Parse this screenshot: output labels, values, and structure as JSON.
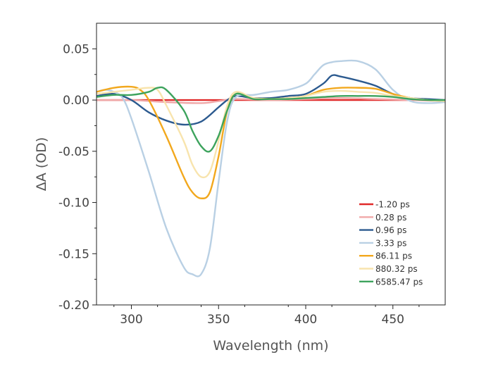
{
  "chart_data": {
    "type": "line",
    "title": "",
    "xlabel": "Wavelength (nm)",
    "ylabel": "ΔA (OD)",
    "xlim": [
      280,
      480
    ],
    "ylim": [
      -0.2,
      0.075
    ],
    "xticks": [
      300,
      350,
      400,
      450
    ],
    "xtick_labels": [
      "300",
      "350",
      "400",
      "450"
    ],
    "yticks": [
      0.05,
      0.0,
      -0.05,
      -0.1,
      -0.15,
      -0.2
    ],
    "ytick_labels": [
      "0.05",
      "0.00",
      "-0.05",
      "-0.10",
      "-0.15",
      "-0.20"
    ],
    "grid": false,
    "legend_position": "lower-right",
    "series": [
      {
        "name": "-1.20 ps",
        "color": "#e02a2a",
        "x": [
          280,
          300,
          320,
          340,
          360,
          380,
          400,
          420,
          440,
          460,
          480
        ],
        "y": [
          0.0,
          0.0,
          0.0,
          0.0,
          0.0,
          0.0,
          0.0,
          0.0,
          0.0,
          0.0,
          0.0
        ]
      },
      {
        "name": "0.28 ps",
        "color": "#f0a8a8",
        "x": [
          280,
          300,
          320,
          340,
          350,
          360,
          380,
          400,
          420,
          440,
          460,
          480
        ],
        "y": [
          0.0,
          0.0,
          -0.002,
          -0.003,
          -0.001,
          0.001,
          0.0,
          0.001,
          0.002,
          0.001,
          0.0,
          -0.001
        ]
      },
      {
        "name": "0.96 ps",
        "color": "#2c5a8f",
        "x": [
          280,
          290,
          300,
          310,
          320,
          330,
          340,
          350,
          355,
          360,
          370,
          380,
          390,
          400,
          410,
          415,
          420,
          430,
          440,
          450,
          460,
          470,
          480
        ],
        "y": [
          0.004,
          0.006,
          0.0,
          -0.012,
          -0.02,
          -0.024,
          -0.021,
          -0.007,
          0.0,
          0.004,
          0.002,
          0.002,
          0.004,
          0.006,
          0.016,
          0.024,
          0.023,
          0.019,
          0.014,
          0.006,
          0.002,
          0.001,
          0.0
        ]
      },
      {
        "name": "3.33 ps",
        "color": "#b9d0e4",
        "x": [
          280,
          285,
          290,
          295,
          300,
          310,
          320,
          330,
          335,
          340,
          345,
          350,
          355,
          360,
          370,
          380,
          390,
          400,
          405,
          410,
          415,
          420,
          430,
          440,
          450,
          460,
          470,
          480
        ],
        "y": [
          0.008,
          0.01,
          0.008,
          0.002,
          -0.018,
          -0.07,
          -0.125,
          -0.163,
          -0.17,
          -0.17,
          -0.145,
          -0.08,
          -0.02,
          0.003,
          0.005,
          0.008,
          0.01,
          0.016,
          0.025,
          0.034,
          0.037,
          0.038,
          0.038,
          0.03,
          0.01,
          -0.001,
          -0.003,
          -0.002
        ]
      },
      {
        "name": "86.11 ps",
        "color": "#f2a81d",
        "x": [
          280,
          290,
          300,
          305,
          310,
          320,
          330,
          335,
          340,
          345,
          350,
          355,
          360,
          370,
          380,
          390,
          400,
          410,
          420,
          430,
          440,
          450,
          460,
          470,
          480
        ],
        "y": [
          0.008,
          0.012,
          0.013,
          0.01,
          0.0,
          -0.035,
          -0.075,
          -0.09,
          -0.096,
          -0.09,
          -0.055,
          -0.01,
          0.006,
          0.002,
          0.001,
          0.002,
          0.004,
          0.01,
          0.012,
          0.012,
          0.011,
          0.006,
          0.002,
          0.0,
          -0.001
        ]
      },
      {
        "name": "880.32 ps",
        "color": "#f8e4ad",
        "x": [
          280,
          290,
          300,
          310,
          315,
          320,
          330,
          335,
          340,
          345,
          350,
          355,
          360,
          370,
          380,
          390,
          400,
          410,
          420,
          430,
          440,
          450,
          460,
          470,
          480
        ],
        "y": [
          0.006,
          0.008,
          0.01,
          0.012,
          0.01,
          -0.005,
          -0.04,
          -0.063,
          -0.075,
          -0.07,
          -0.04,
          -0.005,
          0.008,
          0.002,
          0.001,
          0.002,
          0.004,
          0.008,
          0.009,
          0.008,
          0.007,
          0.004,
          0.002,
          0.0,
          -0.001
        ]
      },
      {
        "name": "6585.47 ps",
        "color": "#3da35d",
        "x": [
          280,
          290,
          300,
          310,
          315,
          320,
          330,
          335,
          340,
          345,
          350,
          355,
          360,
          370,
          380,
          390,
          400,
          410,
          420,
          430,
          440,
          450,
          460,
          470,
          480
        ],
        "y": [
          0.003,
          0.005,
          0.005,
          0.008,
          0.012,
          0.01,
          -0.01,
          -0.03,
          -0.045,
          -0.05,
          -0.035,
          -0.01,
          0.006,
          0.001,
          0.001,
          0.001,
          0.002,
          0.003,
          0.004,
          0.004,
          0.004,
          0.003,
          0.001,
          0.0,
          0.0
        ]
      }
    ]
  }
}
